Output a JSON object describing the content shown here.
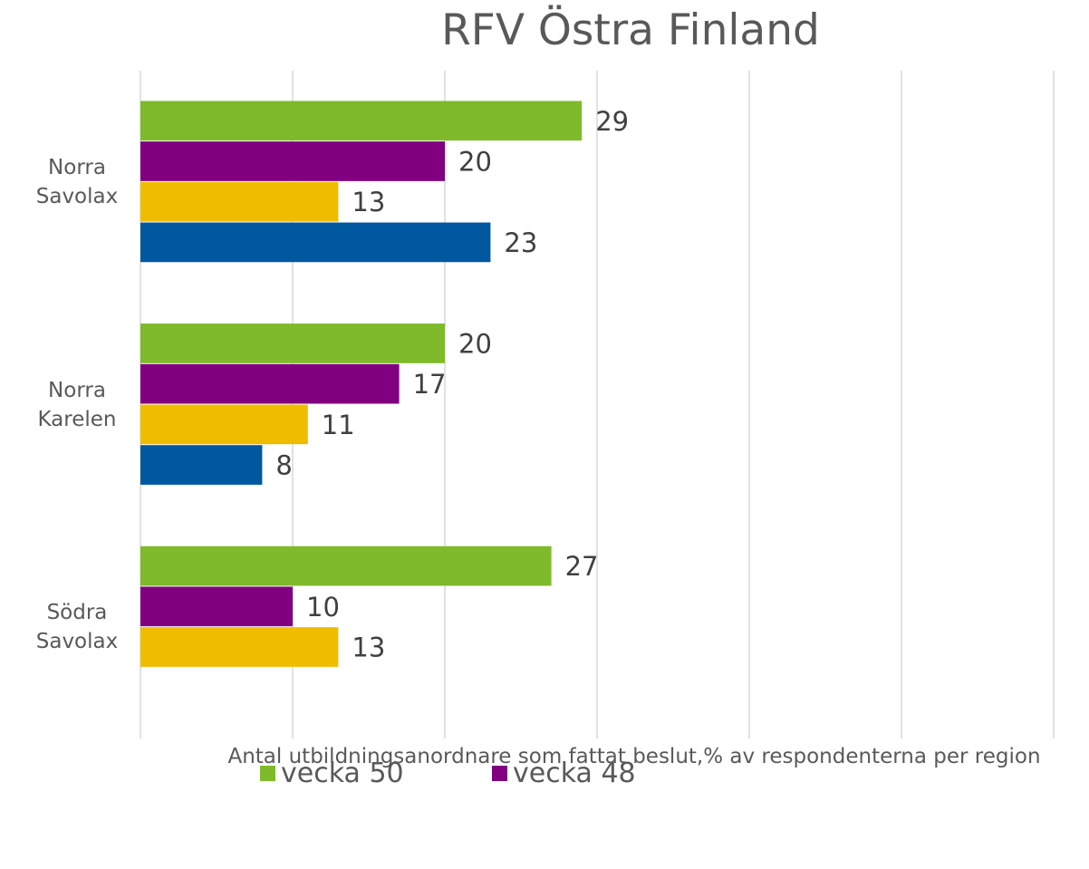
{
  "chart_data": {
    "type": "bar",
    "orientation": "horizontal",
    "title": "RFV Östra Finland",
    "x_label": "Antal utbildningsanordnare som fattat beslut,% av respondenterna per region",
    "categories": [
      "Norra Savolax",
      "Norra Karelen",
      "Södra Savolax"
    ],
    "series": [
      {
        "name": "vecka 50",
        "color": "#7fba2a",
        "values": [
          29,
          20,
          27
        ]
      },
      {
        "name": "vecka 48",
        "color": "#800080",
        "values": [
          20,
          17,
          10
        ]
      },
      {
        "color": "#f0bc00",
        "values": [
          13,
          11,
          13
        ]
      },
      {
        "color": "#0058a0",
        "values": [
          23,
          8,
          null
        ]
      }
    ],
    "xlim": [
      0,
      60
    ],
    "xticks": [
      0,
      10,
      20,
      30,
      40,
      50,
      60
    ],
    "grid": true
  }
}
